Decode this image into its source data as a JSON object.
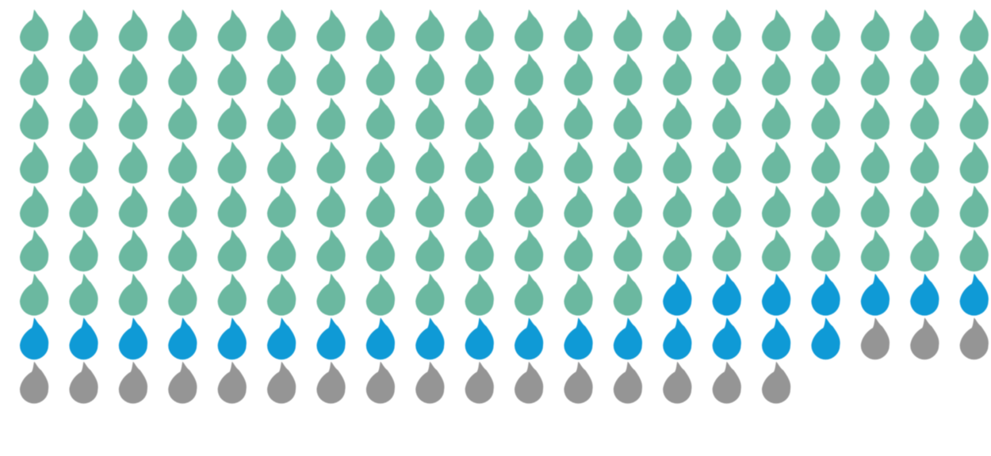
{
  "chart_data": {
    "type": "pictograph",
    "icon": "water-drop-icon",
    "columns": 20,
    "series": [
      {
        "count": 133,
        "color": "#6bb8a0"
      },
      {
        "count": 24,
        "color": "#0f9ad6"
      },
      {
        "count": 19,
        "color": "#959595"
      }
    ],
    "total": 176
  }
}
